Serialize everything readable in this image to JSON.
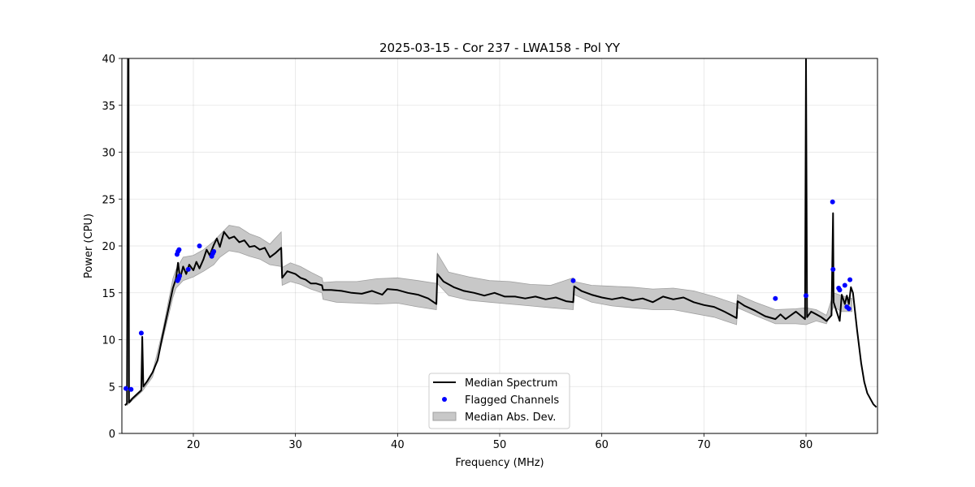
{
  "chart_data": {
    "type": "line",
    "title": "2025-03-15 - Cor 237 - LWA158 - Pol YY",
    "xlabel": "Frequency (MHz)",
    "ylabel": "Power (CPU)",
    "xlim": [
      13,
      87
    ],
    "ylim": [
      0,
      40
    ],
    "xticks": [
      20,
      30,
      40,
      50,
      60,
      70,
      80
    ],
    "yticks": [
      0,
      5,
      10,
      15,
      20,
      25,
      30,
      35,
      40
    ],
    "grid": true,
    "legend_position": "bottom-center",
    "colors": {
      "line": "#000000",
      "flagged": "#0000ff",
      "band": "#c8c8c8",
      "band_edge": "#a0a0a0"
    },
    "series": [
      {
        "name": "Median Spectrum",
        "kind": "line",
        "x": [
          13.3,
          13.5,
          13.6,
          13.65,
          13.7,
          13.8,
          14.0,
          14.5,
          14.9,
          15.0,
          15.1,
          15.5,
          16.0,
          16.5,
          17.0,
          17.5,
          18.0,
          18.3,
          18.5,
          18.7,
          19.0,
          19.3,
          19.6,
          20.0,
          20.3,
          20.6,
          21.0,
          21.3,
          21.6,
          22.0,
          22.3,
          22.6,
          23.0,
          23.5,
          24.0,
          24.5,
          25.0,
          25.5,
          26.0,
          26.5,
          27.0,
          27.5,
          28.0,
          28.6,
          28.7,
          29.2,
          30.0,
          30.5,
          31.0,
          31.5,
          32.0,
          32.6,
          32.7,
          33.5,
          34.5,
          35.5,
          36.5,
          37.5,
          38.5,
          39.0,
          40.0,
          41.0,
          42.0,
          43.0,
          43.8,
          43.9,
          44.5,
          45.5,
          46.5,
          47.5,
          48.5,
          49.5,
          50.5,
          51.5,
          52.5,
          53.5,
          54.5,
          55.5,
          56.5,
          57.2,
          57.3,
          58.0,
          59.0,
          60.0,
          61.0,
          62.0,
          63.0,
          64.0,
          65.0,
          66.0,
          67.0,
          68.0,
          69.0,
          70.0,
          71.0,
          72.0,
          73.2,
          73.3,
          74.0,
          75.0,
          76.0,
          77.0,
          77.5,
          78.0,
          79.0,
          79.9,
          80.0,
          80.1,
          80.5,
          81.0,
          81.5,
          82.0,
          82.5,
          82.65,
          82.7,
          83.0,
          83.3,
          83.5,
          83.8,
          84.0,
          84.2,
          84.4,
          84.6,
          85.0,
          85.4,
          85.7,
          86.0,
          86.3,
          86.6,
          86.9
        ],
        "y": [
          3.0,
          3.2,
          40,
          40,
          3.3,
          3.4,
          3.7,
          4.2,
          4.6,
          10.3,
          5.0,
          5.6,
          6.5,
          7.8,
          10.5,
          13.0,
          15.5,
          16.5,
          18.2,
          16.5,
          17.8,
          17.0,
          18.0,
          17.4,
          18.3,
          17.6,
          18.6,
          19.6,
          19.0,
          20.1,
          20.8,
          19.9,
          21.5,
          20.8,
          21.0,
          20.4,
          20.6,
          19.9,
          20.0,
          19.6,
          19.8,
          18.8,
          19.2,
          19.8,
          16.6,
          17.3,
          17.0,
          16.6,
          16.4,
          16.0,
          16.0,
          15.8,
          15.3,
          15.3,
          15.2,
          15.0,
          14.9,
          15.2,
          14.8,
          15.4,
          15.3,
          15.0,
          14.8,
          14.4,
          13.8,
          17.0,
          16.2,
          15.6,
          15.2,
          15.0,
          14.7,
          15.0,
          14.6,
          14.6,
          14.4,
          14.6,
          14.3,
          14.5,
          14.1,
          14.0,
          15.7,
          15.2,
          14.8,
          14.5,
          14.3,
          14.5,
          14.2,
          14.4,
          14.0,
          14.6,
          14.3,
          14.5,
          14.0,
          13.7,
          13.5,
          13.0,
          12.3,
          14.1,
          13.6,
          13.1,
          12.5,
          12.2,
          12.7,
          12.2,
          13.0,
          12.2,
          40,
          12.4,
          13.0,
          12.7,
          12.4,
          12.0,
          12.6,
          23.5,
          14.0,
          13.0,
          12.0,
          14.8,
          13.8,
          14.7,
          13.8,
          15.6,
          15.0,
          11.0,
          7.5,
          5.5,
          4.3,
          3.7,
          3.1,
          2.8
        ]
      },
      {
        "name": "Flagged Channels",
        "kind": "scatter",
        "x": [
          13.4,
          13.9,
          14.9,
          18.4,
          18.5,
          18.6,
          18.45,
          18.55,
          18.65,
          19.5,
          20.6,
          21.8,
          21.9,
          22.0,
          57.2,
          77.0,
          80.0,
          82.6,
          82.65,
          83.2,
          83.3,
          83.8,
          84.0,
          84.2,
          84.3
        ],
        "y": [
          4.8,
          4.7,
          10.7,
          19.1,
          19.4,
          19.6,
          16.3,
          16.5,
          16.8,
          17.5,
          20.0,
          18.9,
          19.2,
          19.4,
          16.3,
          14.4,
          14.7,
          24.7,
          17.5,
          15.5,
          15.3,
          15.8,
          13.5,
          13.3,
          16.4
        ]
      },
      {
        "name": "Median Abs. Dev.",
        "kind": "band",
        "x": [
          13.5,
          14.0,
          15.0,
          16.0,
          17.0,
          18.0,
          18.3,
          19.0,
          20.0,
          21.0,
          22.0,
          22.6,
          23.5,
          24.5,
          25.5,
          26.5,
          27.5,
          28.6,
          28.7,
          29.5,
          30.5,
          31.5,
          32.6,
          32.7,
          34.0,
          36.0,
          38.0,
          40.0,
          42.0,
          43.8,
          43.9,
          45.0,
          47.0,
          49.0,
          51.0,
          53.0,
          55.0,
          57.2,
          57.3,
          59.0,
          61.0,
          63.0,
          65.0,
          67.0,
          69.0,
          71.0,
          73.2,
          73.3,
          75.0,
          77.0,
          79.0,
          80.0,
          81.0,
          82.0,
          82.7,
          83.5,
          84.5
        ],
        "lower": [
          3.0,
          3.5,
          4.5,
          6.0,
          10.0,
          14.5,
          15.5,
          16.3,
          16.7,
          17.3,
          18.0,
          18.8,
          19.5,
          19.3,
          18.9,
          18.6,
          18.0,
          17.8,
          15.8,
          16.2,
          15.9,
          15.4,
          15.0,
          14.3,
          14.0,
          13.9,
          13.8,
          13.9,
          13.5,
          13.2,
          16.0,
          14.7,
          14.2,
          14.0,
          13.8,
          13.6,
          13.4,
          13.2,
          14.8,
          14.0,
          13.6,
          13.4,
          13.2,
          13.2,
          12.8,
          12.4,
          11.6,
          13.4,
          12.6,
          11.7,
          11.7,
          11.6,
          12.0,
          11.7,
          13.5,
          13.0,
          13.0
        ],
        "upper": [
          3.3,
          3.8,
          4.8,
          6.5,
          11.0,
          16.5,
          17.5,
          18.8,
          19.0,
          19.6,
          20.5,
          21.2,
          22.2,
          22.0,
          21.3,
          20.9,
          20.2,
          21.5,
          17.7,
          18.2,
          17.8,
          17.2,
          16.6,
          16.1,
          16.2,
          16.2,
          16.5,
          16.6,
          16.3,
          16.0,
          19.2,
          17.2,
          16.7,
          16.3,
          16.2,
          15.9,
          15.8,
          16.6,
          16.2,
          15.8,
          15.7,
          15.6,
          15.4,
          15.5,
          15.2,
          14.6,
          13.8,
          14.8,
          14.0,
          13.2,
          13.3,
          13.4,
          13.2,
          12.6,
          15.0,
          14.7,
          14.4
        ]
      }
    ]
  }
}
